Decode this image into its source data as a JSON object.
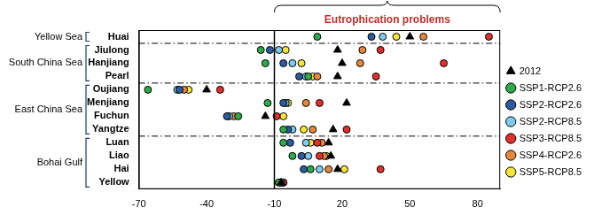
{
  "chart_data": {
    "type": "scatter",
    "orientation": "horizontal",
    "categories": [
      "Huai",
      "Jiulong",
      "Hanjiang",
      "Pearl",
      "Oujiang",
      "Menjiang",
      "Fuchun",
      "Yangtze",
      "Luan",
      "Liao",
      "Hai",
      "Yellow"
    ],
    "groups": [
      {
        "name": "Yellow Sea",
        "categories": [
          "Huai"
        ]
      },
      {
        "name": "South China Sea",
        "categories": [
          "Jiulong",
          "Hanjiang",
          "Pearl"
        ]
      },
      {
        "name": "East China Sea",
        "categories": [
          "Oujiang",
          "Menjiang",
          "Fuchun",
          "Yangtze"
        ]
      },
      {
        "name": "Bohai Gulf",
        "categories": [
          "Luan",
          "Liao",
          "Hai",
          "Yellow"
        ]
      }
    ],
    "reference_line": -10,
    "annotation": "Eutrophication problems",
    "xlim": [
      -70,
      90
    ],
    "xticks": [
      -70,
      -40,
      -10,
      20,
      50,
      80
    ],
    "grid": false,
    "legend": "right",
    "series": [
      {
        "name": "2012",
        "color": "#000000",
        "marker": "triangle",
        "values": [
          50,
          18,
          20,
          18,
          -40,
          22,
          -14,
          16,
          14,
          15,
          18,
          -7
        ]
      },
      {
        "name": "SSP1-RCP2.6",
        "color": "#2eaa4a",
        "marker": "circle",
        "values": [
          9,
          -16,
          -14,
          5,
          -66,
          -13,
          -26,
          -6,
          -6,
          -2,
          6,
          -8
        ]
      },
      {
        "name": "SSP2-RCP2.6",
        "color": "#2e5c9e",
        "marker": "circle",
        "values": [
          33,
          -12,
          -6,
          1,
          -52,
          -6,
          -31,
          -4,
          -3,
          2,
          3,
          -8
        ]
      },
      {
        "name": "SSP2-RCP8.5",
        "color": "#7ecbf0",
        "marker": "circle",
        "values": [
          38,
          -8,
          -2,
          4,
          -53,
          -5,
          -30,
          -2,
          4,
          5,
          10,
          -7
        ]
      },
      {
        "name": "SSP3-RCP8.5",
        "color": "#e0302a",
        "marker": "circle",
        "values": [
          85,
          37,
          65,
          35,
          -34,
          10,
          -9,
          22,
          9,
          10,
          37,
          -6
        ]
      },
      {
        "name": "SSP4-RCP2.6",
        "color": "#e6883c",
        "marker": "circle",
        "values": [
          56,
          29,
          28,
          9,
          -50,
          4,
          -28,
          7,
          11,
          12,
          14,
          -7
        ]
      },
      {
        "name": "SSP5-RCP8.5",
        "color": "#f7e638",
        "marker": "circle",
        "values": [
          44,
          -5,
          2,
          7,
          -48,
          -4,
          -6,
          3,
          6,
          13,
          21,
          -6
        ]
      }
    ]
  }
}
